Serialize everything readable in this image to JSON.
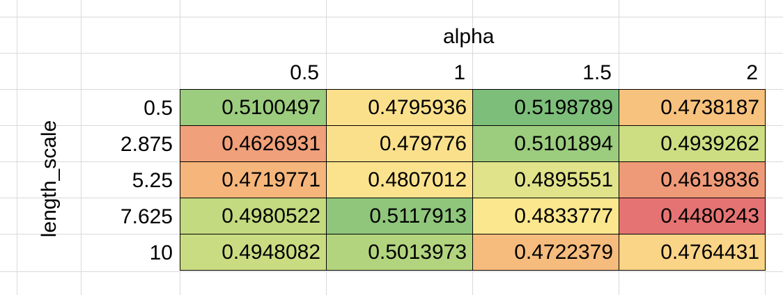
{
  "chart_data": {
    "type": "heatmap",
    "xlabel": "alpha",
    "ylabel": "length_scale",
    "x": [
      "0.5",
      "1",
      "1.5",
      "2"
    ],
    "y": [
      "0.5",
      "2.875",
      "5.25",
      "7.625",
      "10"
    ],
    "values": [
      [
        "0.5100497",
        "0.4795936",
        "0.5198789",
        "0.4738187"
      ],
      [
        "0.4626931",
        "0.479776",
        "0.5101894",
        "0.4939262"
      ],
      [
        "0.4719771",
        "0.4807012",
        "0.4895551",
        "0.4619836"
      ],
      [
        "0.4980522",
        "0.5117913",
        "0.4833777",
        "0.4480243"
      ],
      [
        "0.4948082",
        "0.5013973",
        "0.4722379",
        "0.4764431"
      ]
    ],
    "colors": [
      [
        "#9ccc7e",
        "#fbe08c",
        "#7dbf7a",
        "#f7c27d"
      ],
      [
        "#f0a07a",
        "#fbe08c",
        "#9ccc7e",
        "#cddd82"
      ],
      [
        "#f6b67b",
        "#fbe28d",
        "#e0e389",
        "#ee9a78"
      ],
      [
        "#c3da80",
        "#8fc67c",
        "#fbe78e",
        "#e67373"
      ],
      [
        "#cadc82",
        "#b3d47e",
        "#f6bc7d",
        "#fad487"
      ]
    ]
  }
}
